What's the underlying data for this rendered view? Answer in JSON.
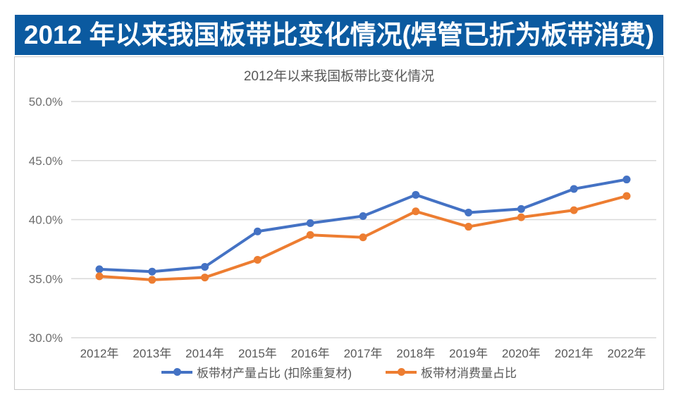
{
  "banner": {
    "title": "2012 年以来我国板带比变化情况(焊管已折为板带消费)",
    "bg_color": "#0B5AA0",
    "text_color": "#FFFFFF"
  },
  "chart_data": {
    "type": "line",
    "title": "2012年以来我国板带比变化情况",
    "xlabel": "",
    "ylabel": "",
    "ylim": [
      30,
      50
    ],
    "grid": true,
    "legend_position": "bottom",
    "categories": [
      "2012年",
      "2013年",
      "2014年",
      "2015年",
      "2016年",
      "2017年",
      "2018年",
      "2019年",
      "2020年",
      "2021年",
      "2022年"
    ],
    "y_ticks": [
      {
        "label": "50.0%",
        "value": 50
      },
      {
        "label": "45.0%",
        "value": 45
      },
      {
        "label": "40.0%",
        "value": 40
      },
      {
        "label": "35.0%",
        "value": 35
      },
      {
        "label": "30.0%",
        "value": 30
      }
    ],
    "series": [
      {
        "name": "板带材产量占比 (扣除重复材)",
        "color": "#4472C4",
        "values": [
          35.8,
          35.6,
          36.0,
          39.0,
          39.7,
          40.3,
          42.1,
          40.6,
          40.9,
          42.6,
          43.4
        ]
      },
      {
        "name": "板带材消费量占比",
        "color": "#ED7D31",
        "values": [
          35.2,
          34.9,
          35.1,
          36.6,
          38.7,
          38.5,
          40.7,
          39.4,
          40.2,
          40.8,
          42.0
        ]
      }
    ]
  },
  "colors": {
    "gridline": "#D9D9D9",
    "axis_text": "#6E6E6E",
    "x_label_text": "#595959",
    "chart_border": "#C8C8C8",
    "background": "#FFFFFF"
  }
}
